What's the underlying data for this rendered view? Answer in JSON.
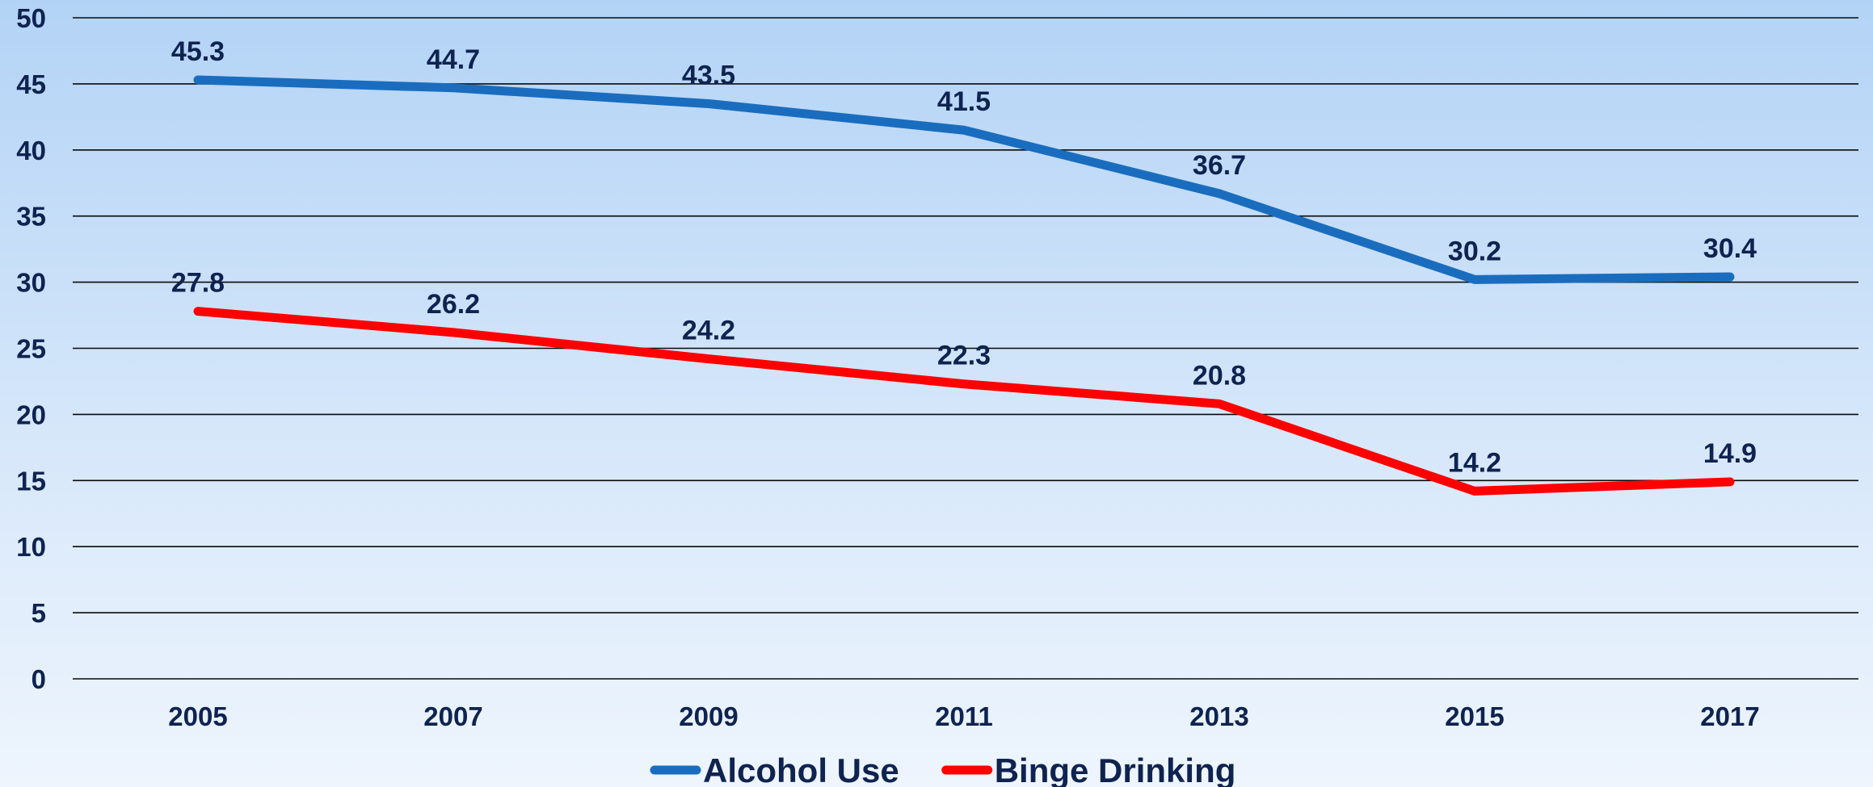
{
  "chart_data": {
    "type": "line",
    "title": "",
    "xlabel": "",
    "ylabel": "",
    "categories": [
      "2005",
      "2007",
      "2009",
      "2011",
      "2013",
      "2015",
      "2017"
    ],
    "ylim": [
      0,
      50
    ],
    "yticks": [
      0,
      5,
      10,
      15,
      20,
      25,
      30,
      35,
      40,
      45,
      50
    ],
    "grid": "horizontal",
    "legend_position": "bottom",
    "series": [
      {
        "name": "Alcohol Use",
        "color": "#1a6dbe",
        "values": [
          45.3,
          44.7,
          43.5,
          41.5,
          36.7,
          30.2,
          30.4
        ]
      },
      {
        "name": "Binge Drinking",
        "color": "#ff0000",
        "values": [
          27.8,
          26.2,
          24.2,
          22.3,
          20.8,
          14.2,
          14.9
        ]
      }
    ]
  }
}
